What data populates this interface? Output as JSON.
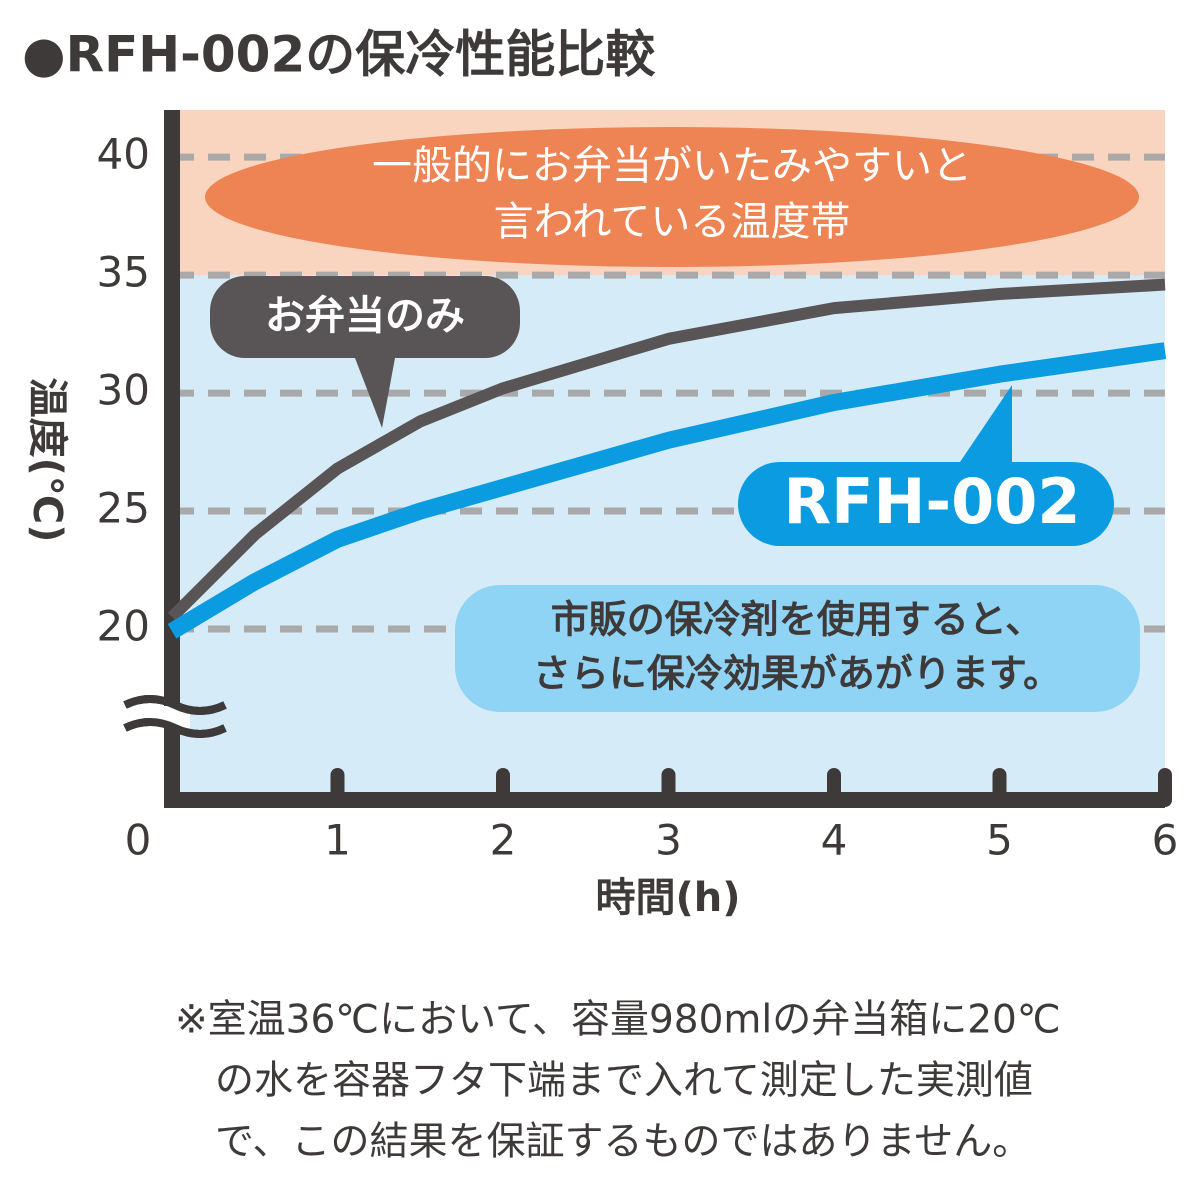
{
  "chart_data": {
    "type": "line",
    "title": "●RFH-002の保冷性能比較",
    "x_label": "時間(h)",
    "y_label": "温度(℃)",
    "x": [
      0,
      0.5,
      1,
      1.5,
      2,
      3,
      4,
      5,
      6
    ],
    "series": [
      {
        "name": "お弁当のみ",
        "color": "#595455",
        "values": [
          20.5,
          24,
          26.8,
          28.8,
          30.2,
          32.3,
          33.6,
          34.2,
          34.6
        ]
      },
      {
        "name": "RFH-002",
        "color": "#0a9be0",
        "values": [
          19.9,
          22,
          23.8,
          25,
          26,
          28,
          29.6,
          30.8,
          31.8
        ]
      }
    ],
    "xlim": [
      0,
      6
    ],
    "xticks": [
      0,
      1,
      2,
      3,
      4,
      5,
      6
    ],
    "ylim": [
      12.75,
      42
    ],
    "yticks": [
      20,
      25,
      30,
      35,
      40
    ],
    "grid": true,
    "danger_band": [
      35,
      42
    ],
    "danger_label": [
      "一般的にお弁当がいたみやすいと",
      "言われている温度帯"
    ],
    "note": [
      "市販の保冷剤を使用すると、",
      "さらに保冷効果があがります。"
    ],
    "footnote": [
      "※室温36℃において、容量980mlの弁当箱に20℃",
      "の水を容器フタ下端まで入れて測定した実測値",
      "で、この結果を保証するものではありません。"
    ]
  }
}
